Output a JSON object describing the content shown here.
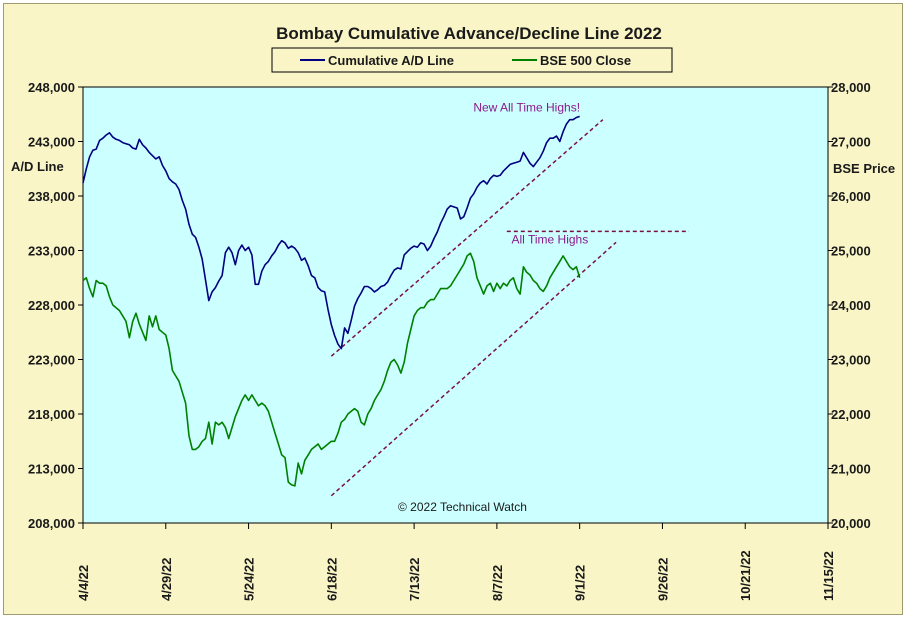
{
  "chart_data": {
    "type": "line",
    "title": "Bombay Cumulative Advance/Decline Line 2022",
    "left_axis_label": "A/D Line",
    "right_axis_label": "BSE Price",
    "copyright": "© 2022 Technical Watch",
    "left_ylim": [
      208000,
      248000
    ],
    "right_ylim": [
      20000,
      28000
    ],
    "left_ticks": [
      "248,000",
      "243,000",
      "238,000",
      "233,000",
      "228,000",
      "223,000",
      "218,000",
      "213,000",
      "208,000"
    ],
    "right_ticks": [
      "28,000",
      "27,000",
      "26,000",
      "25,000",
      "24,000",
      "23,000",
      "22,000",
      "21,000",
      "20,000"
    ],
    "x_ticks": [
      "4/4/22",
      "4/29/22",
      "5/24/22",
      "6/18/22",
      "7/13/22",
      "8/7/22",
      "9/1/22",
      "9/26/22",
      "10/21/22",
      "11/15/22"
    ],
    "x_range_days": [
      0,
      225
    ],
    "grid": false,
    "legend_position": "top-center",
    "colors": {
      "plot_bg": "#ccffff",
      "frame_bg": "#f9f5c7",
      "ad_line": "#000080",
      "bse_line": "#008000",
      "annotation": "#8b1a8b",
      "trend": "#7b1040"
    },
    "series": [
      {
        "name": "Cumulative A/D Line",
        "axis": "left",
        "x": [
          0,
          1,
          2,
          3,
          4,
          5,
          6,
          7,
          8,
          9,
          10,
          11,
          12,
          13,
          14,
          15,
          16,
          17,
          18,
          19,
          20,
          21,
          22,
          23,
          24,
          25,
          26,
          27,
          28,
          29,
          30,
          31,
          32,
          33,
          34,
          35,
          36,
          37,
          38,
          39,
          40,
          41,
          42,
          43,
          44,
          45,
          46,
          47,
          48,
          49,
          50,
          51,
          52,
          53,
          54,
          55,
          56,
          57,
          58,
          59,
          60,
          61,
          62,
          63,
          64,
          65,
          66,
          67,
          68,
          69,
          70,
          71,
          72,
          73,
          74,
          75,
          76,
          77,
          78,
          79,
          80,
          81,
          82,
          83,
          84,
          85,
          86,
          87,
          88,
          89,
          90,
          91,
          92,
          93,
          94,
          95,
          96,
          97,
          98,
          99,
          100,
          101,
          102,
          103,
          104,
          105,
          106,
          107,
          108,
          109,
          110,
          111,
          112,
          113,
          114,
          115,
          116,
          117,
          118,
          119,
          120,
          121,
          122,
          123,
          124,
          125,
          126,
          127,
          128,
          129,
          130,
          131,
          132,
          133,
          134,
          135,
          136,
          137,
          138,
          139,
          140,
          141,
          142,
          143,
          144,
          145,
          146,
          147,
          148,
          149,
          150
        ],
        "values": [
          239200,
          240500,
          241600,
          242200,
          242300,
          243100,
          243300,
          243600,
          243800,
          243400,
          243200,
          243100,
          242900,
          242800,
          242700,
          242400,
          242300,
          243200,
          242700,
          242400,
          242000,
          241700,
          241400,
          241600,
          240800,
          240300,
          239600,
          239300,
          239100,
          238600,
          237600,
          236800,
          235400,
          234500,
          234200,
          233300,
          232200,
          230300,
          228400,
          229200,
          229600,
          230200,
          230700,
          232800,
          233300,
          232800,
          231700,
          233000,
          233500,
          233000,
          233300,
          232600,
          229900,
          229900,
          231100,
          231700,
          232000,
          232500,
          232900,
          233500,
          233900,
          233700,
          233200,
          233400,
          233200,
          232800,
          232100,
          232300,
          231600,
          230700,
          230500,
          229600,
          229300,
          229200,
          227600,
          226200,
          225200,
          224400,
          224000,
          225900,
          225400,
          226600,
          227900,
          228600,
          229100,
          229700,
          229700,
          229500,
          229200,
          229400,
          229700,
          229800,
          230100,
          230700,
          231200,
          231400,
          231300,
          232600,
          232900,
          233200,
          233400,
          233300,
          233700,
          233600,
          233000,
          233400,
          234100,
          234700,
          235500,
          236100,
          236800,
          237100,
          237000,
          236900,
          235900,
          236100,
          236900,
          237800,
          238200,
          238800,
          239200,
          239400,
          239100,
          239600,
          239900,
          239800,
          239900,
          240300,
          240600,
          240900,
          241000,
          241100,
          241200,
          242000,
          241500,
          241000,
          240700,
          241100,
          241500,
          242100,
          242900,
          243300,
          243300,
          243500,
          243000,
          243900,
          244600,
          245000,
          245000,
          245200,
          245300
        ]
      },
      {
        "name": "BSE 500 Close",
        "axis": "right",
        "x": [
          0,
          1,
          2,
          3,
          4,
          5,
          6,
          7,
          8,
          9,
          10,
          11,
          12,
          13,
          14,
          15,
          16,
          17,
          18,
          19,
          20,
          21,
          22,
          23,
          24,
          25,
          26,
          27,
          28,
          29,
          30,
          31,
          32,
          33,
          34,
          35,
          36,
          37,
          38,
          39,
          40,
          41,
          42,
          43,
          44,
          45,
          46,
          47,
          48,
          49,
          50,
          51,
          52,
          53,
          54,
          55,
          56,
          57,
          58,
          59,
          60,
          61,
          62,
          63,
          64,
          65,
          66,
          67,
          68,
          69,
          70,
          71,
          72,
          73,
          74,
          75,
          76,
          77,
          78,
          79,
          80,
          81,
          82,
          83,
          84,
          85,
          86,
          87,
          88,
          89,
          90,
          91,
          92,
          93,
          94,
          95,
          96,
          97,
          98,
          99,
          100,
          101,
          102,
          103,
          104,
          105,
          106,
          107,
          108,
          109,
          110,
          111,
          112,
          113,
          114,
          115,
          116,
          117,
          118,
          119,
          120,
          121,
          122,
          123,
          124,
          125,
          126,
          127,
          128,
          129,
          130,
          131,
          132,
          133,
          134,
          135,
          136,
          137,
          138,
          139,
          140,
          141,
          142,
          143,
          144,
          145,
          146,
          147,
          148,
          149,
          150
        ],
        "values": [
          24450,
          24500,
          24300,
          24150,
          24450,
          24400,
          24400,
          24350,
          24150,
          24000,
          23950,
          23900,
          23800,
          23700,
          23400,
          23700,
          23850,
          23650,
          23500,
          23350,
          23800,
          23600,
          23800,
          23550,
          23500,
          23450,
          23200,
          22800,
          22700,
          22600,
          22400,
          22200,
          21600,
          21350,
          21350,
          21400,
          21500,
          21550,
          21850,
          21450,
          21850,
          21800,
          21850,
          21750,
          21550,
          21750,
          21950,
          22100,
          22250,
          22350,
          22250,
          22350,
          22250,
          22150,
          22200,
          22150,
          22050,
          21850,
          21650,
          21450,
          21250,
          21200,
          20750,
          20700,
          20680,
          21100,
          20900,
          21150,
          21250,
          21350,
          21400,
          21450,
          21350,
          21400,
          21450,
          21500,
          21500,
          21650,
          21850,
          21900,
          22000,
          22050,
          22100,
          22050,
          21850,
          21800,
          22000,
          22100,
          22250,
          22350,
          22450,
          22600,
          22800,
          22950,
          23000,
          22900,
          22750,
          22950,
          23300,
          23550,
          23800,
          23900,
          23950,
          23950,
          24050,
          24100,
          24100,
          24200,
          24300,
          24300,
          24300,
          24350,
          24450,
          24550,
          24650,
          24750,
          24900,
          24950,
          24800,
          24500,
          24350,
          24200,
          24350,
          24400,
          24250,
          24400,
          24300,
          24400,
          24350,
          24450,
          24500,
          24300,
          24200,
          24700,
          24600,
          24550,
          24450,
          24400,
          24300,
          24250,
          24350,
          24500,
          24600,
          24700,
          24800,
          24900,
          24800,
          24700,
          24650,
          24700,
          24500
        ]
      }
    ],
    "annotations": [
      {
        "text": "New All Time Highs!",
        "x": 134,
        "left_y": 245000
      },
      {
        "text": "All Time Highs",
        "x": 141,
        "right_y": 25150
      }
    ],
    "trendlines": [
      {
        "axis": "left",
        "x1": 75,
        "y1": 223300,
        "x2": 157,
        "y2": 245000
      },
      {
        "axis": "right",
        "x1": 75,
        "y1": 20500,
        "x2": 161,
        "y2": 25150
      },
      {
        "axis": "right",
        "x1": 128,
        "y1": 25350,
        "x2": 183,
        "y2": 25350
      }
    ]
  }
}
